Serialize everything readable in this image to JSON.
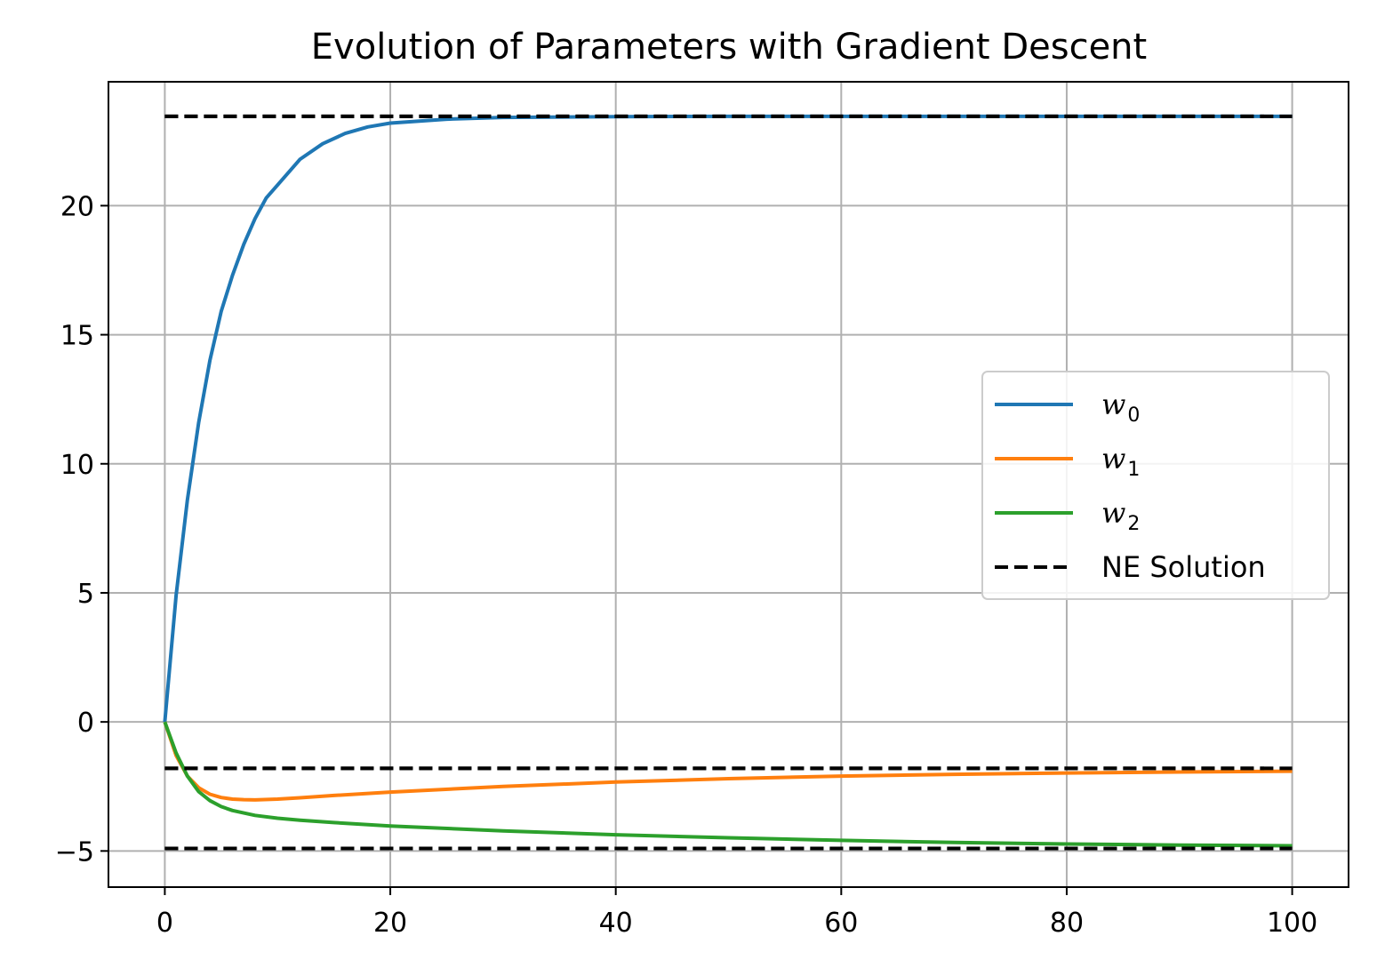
{
  "chart_data": {
    "type": "line",
    "title": "Evolution of Parameters with Gradient Descent",
    "xlabel": "",
    "ylabel": "",
    "xlim": [
      -5,
      105
    ],
    "ylim": [
      -6.4,
      24.8
    ],
    "xticks": [
      0,
      20,
      40,
      60,
      80,
      100
    ],
    "yticks": [
      -5,
      0,
      5,
      10,
      15,
      20
    ],
    "grid": true,
    "legend_position": "center-right",
    "series": [
      {
        "name": "w0",
        "legend_base": "w",
        "legend_sub": "0",
        "color": "#1f77b4",
        "style": "solid",
        "x": [
          0,
          1,
          2,
          3,
          4,
          5,
          6,
          7,
          8,
          9,
          10,
          12,
          14,
          16,
          18,
          20,
          25,
          30,
          40,
          50,
          60,
          70,
          80,
          90,
          100
        ],
        "y": [
          0,
          4.9,
          8.6,
          11.6,
          14.0,
          15.9,
          17.3,
          18.5,
          19.5,
          20.3,
          20.8,
          21.8,
          22.4,
          22.8,
          23.05,
          23.2,
          23.35,
          23.42,
          23.45,
          23.46,
          23.46,
          23.46,
          23.46,
          23.46,
          23.46
        ]
      },
      {
        "name": "w1",
        "legend_base": "w",
        "legend_sub": "1",
        "color": "#ff7f0e",
        "style": "solid",
        "x": [
          0,
          1,
          2,
          3,
          4,
          5,
          6,
          7,
          8,
          10,
          12,
          15,
          20,
          30,
          40,
          50,
          60,
          70,
          80,
          90,
          100
        ],
        "y": [
          0,
          -1.3,
          -2.1,
          -2.55,
          -2.8,
          -2.93,
          -2.99,
          -3.01,
          -3.02,
          -2.99,
          -2.94,
          -2.85,
          -2.72,
          -2.5,
          -2.33,
          -2.2,
          -2.1,
          -2.03,
          -1.98,
          -1.94,
          -1.91
        ]
      },
      {
        "name": "w2",
        "legend_base": "w",
        "legend_sub": "2",
        "color": "#2ca02c",
        "style": "solid",
        "x": [
          0,
          1,
          2,
          3,
          4,
          5,
          6,
          8,
          10,
          12,
          15,
          20,
          30,
          40,
          50,
          60,
          70,
          80,
          90,
          100
        ],
        "y": [
          0,
          -1.2,
          -2.1,
          -2.7,
          -3.05,
          -3.28,
          -3.43,
          -3.62,
          -3.73,
          -3.81,
          -3.9,
          -4.03,
          -4.22,
          -4.37,
          -4.49,
          -4.59,
          -4.67,
          -4.73,
          -4.77,
          -4.8
        ]
      },
      {
        "name": "NE Solution",
        "legend_base": "NE Solution",
        "legend_sub": "",
        "color": "#000000",
        "style": "dashed",
        "hlines": [
          23.46,
          -1.8,
          -4.9
        ],
        "x_range": [
          0,
          100
        ]
      }
    ]
  }
}
